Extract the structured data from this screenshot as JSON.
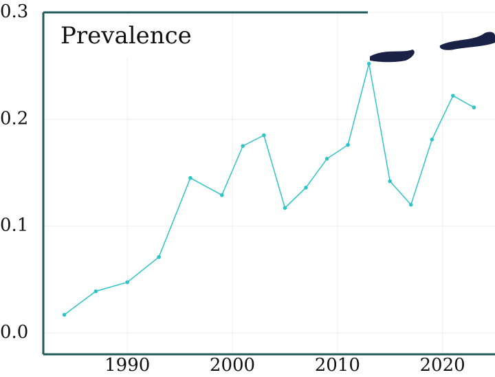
{
  "chart_data": {
    "type": "line",
    "title": "Prevalence",
    "x": [
      1984,
      1987,
      1990,
      1993,
      1996,
      1999,
      2001,
      2003,
      2005,
      2007,
      2009,
      2011,
      2013,
      2015,
      2017,
      2019,
      2021,
      2023
    ],
    "series": [
      {
        "color": "#2ec4c6",
        "values": [
          0.017,
          0.039,
          0.0475,
          0.071,
          0.145,
          0.129,
          0.175,
          0.185,
          0.117,
          0.136,
          0.163,
          0.176,
          0.252,
          0.142,
          0.12,
          0.181,
          0.222,
          0.211
        ]
      }
    ],
    "xlim": [
      1982,
      2025
    ],
    "xticks": [
      1990,
      2000,
      2010,
      2020
    ],
    "ylim": [
      -0.02,
      0.3
    ],
    "yticks": [
      {
        "value": 0,
        "label": "0.0"
      },
      0.1,
      0.2,
      0.3
    ],
    "grid": true
  }
}
